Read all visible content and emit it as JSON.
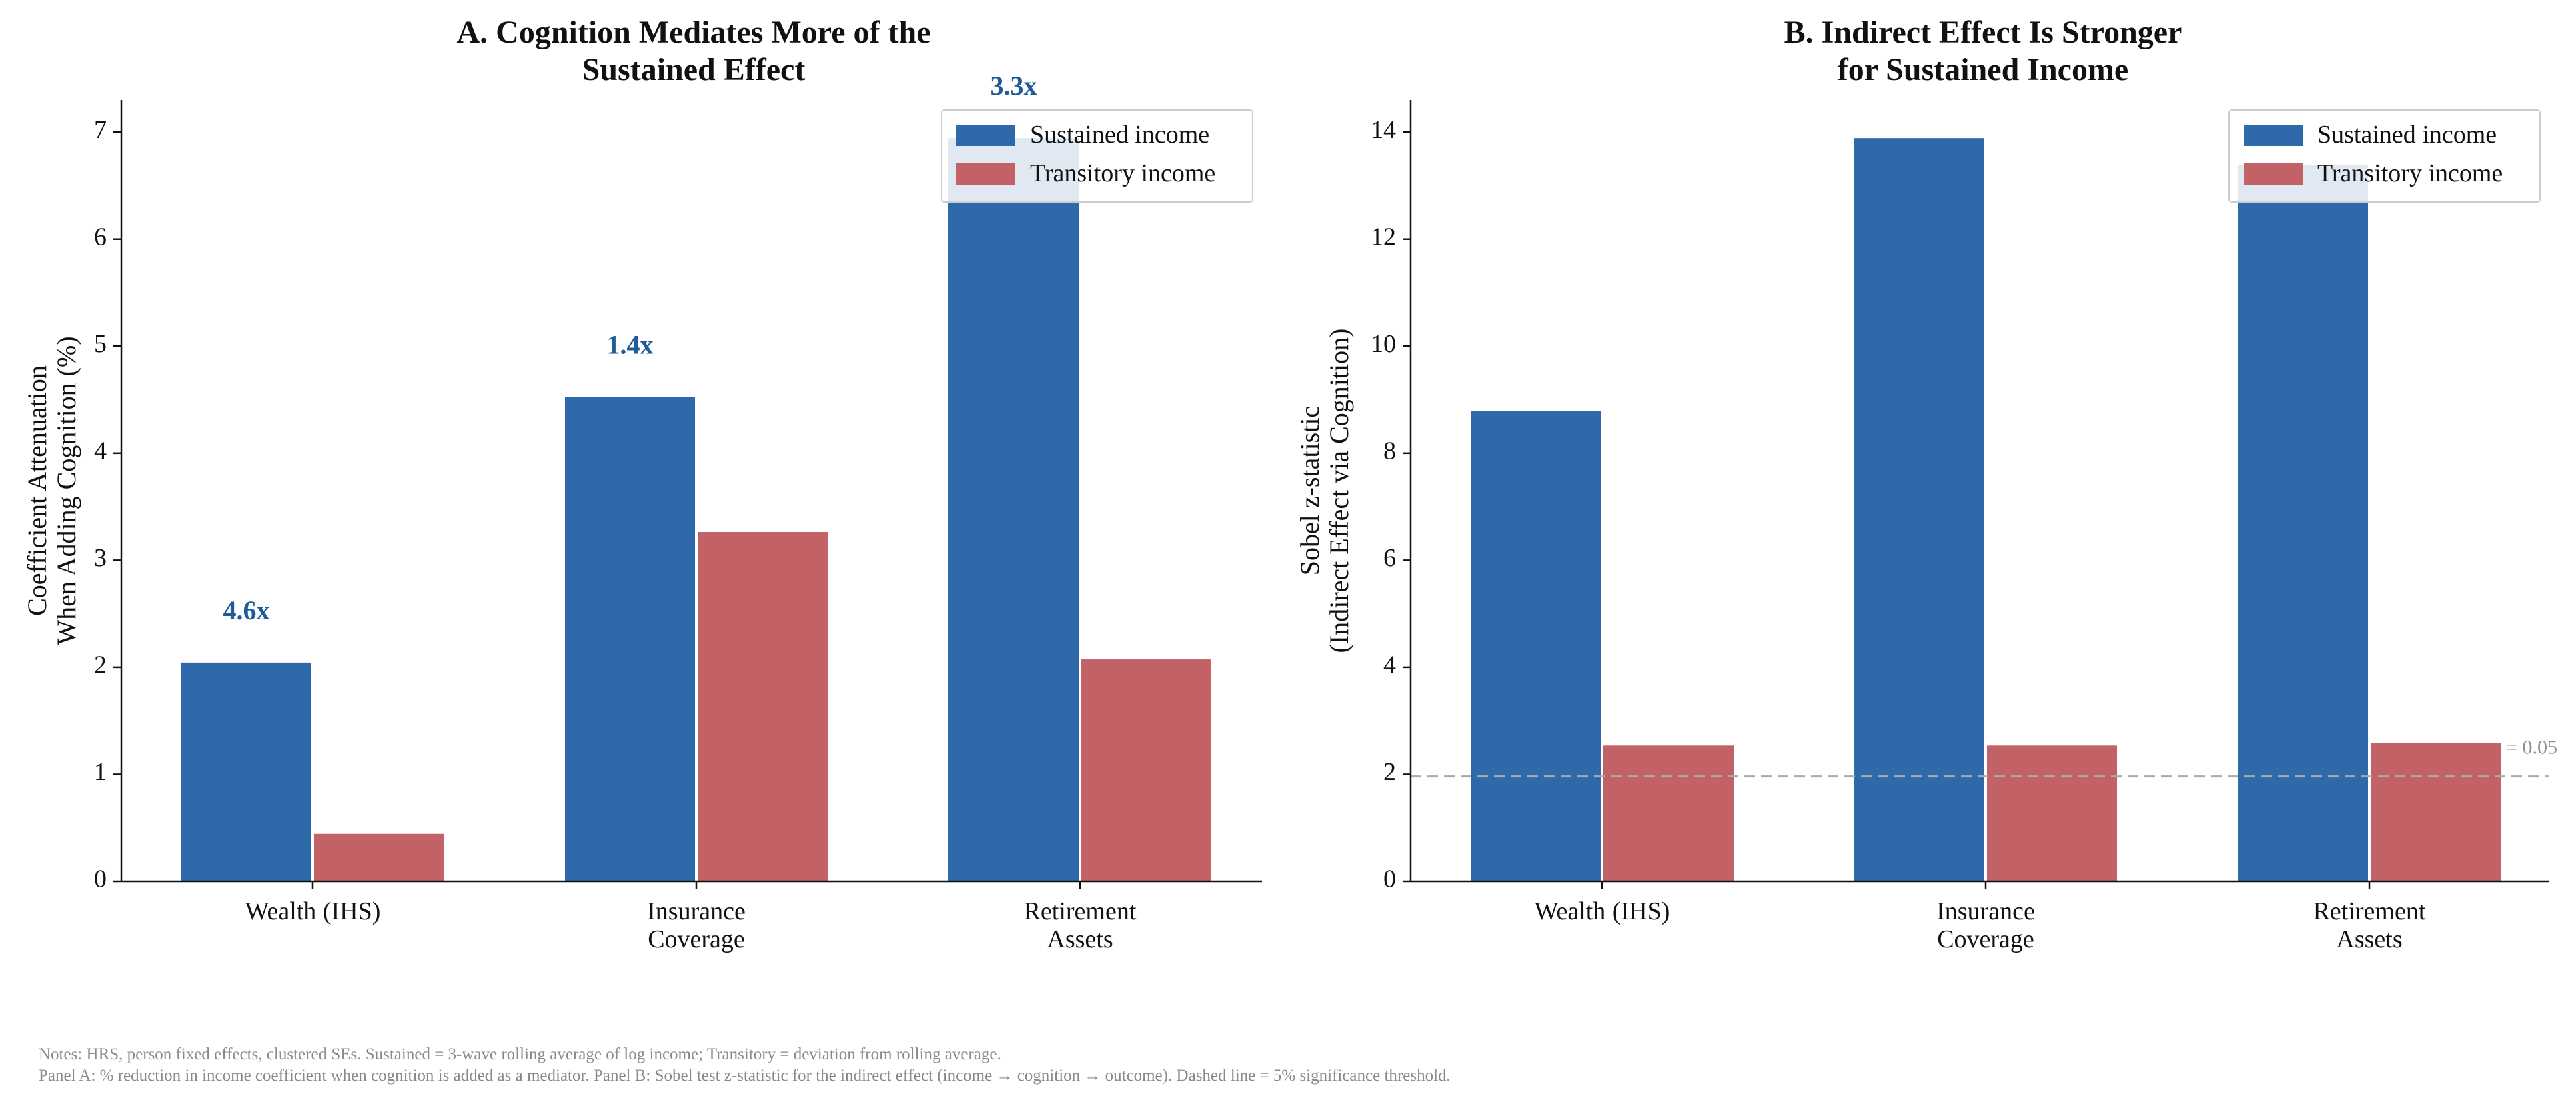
{
  "colors": {
    "sustained": "#2e6aaa",
    "transitory": "#c26266",
    "ratio_label": "#1f5a99",
    "threshold": "#aaaaaa",
    "notes": "#8a8a8a"
  },
  "chart_data": [
    {
      "type": "bar",
      "title_lines": [
        "A. Cognition Mediates More of the",
        "Sustained Effect"
      ],
      "ylabel_lines": [
        "Coefficient Attenuation",
        "When Adding Cognition (%)"
      ],
      "categories": [
        [
          "Wealth (IHS)"
        ],
        [
          "Insurance",
          "Coverage"
        ],
        [
          "Retirement",
          "Assets"
        ]
      ],
      "series": [
        {
          "name": "Sustained income",
          "values": [
            2.05,
            4.53,
            6.95
          ]
        },
        {
          "name": "Transitory income",
          "values": [
            0.45,
            3.27,
            2.08
          ]
        }
      ],
      "ratio_labels": [
        "4.6x",
        "1.4x",
        "3.3x"
      ],
      "ylim": [
        0,
        7.3
      ],
      "yticks": [
        0,
        1,
        2,
        3,
        4,
        5,
        6,
        7
      ],
      "legend": "top-right",
      "grid": false
    },
    {
      "type": "bar",
      "title_lines": [
        "B. Indirect Effect Is Stronger",
        "for Sustained Income"
      ],
      "ylabel_lines": [
        "Sobel z-statistic",
        "(Indirect Effect via Cognition)"
      ],
      "categories": [
        [
          "Wealth (IHS)"
        ],
        [
          "Insurance",
          "Coverage"
        ],
        [
          "Retirement",
          "Assets"
        ]
      ],
      "series": [
        {
          "name": "Sustained income",
          "values": [
            8.8,
            13.9,
            13.4
          ]
        },
        {
          "name": "Transitory income",
          "values": [
            2.55,
            2.55,
            2.6
          ]
        }
      ],
      "threshold": {
        "value": 1.96,
        "label": "= 0.05"
      },
      "ylim": [
        0,
        14.6
      ],
      "yticks": [
        0,
        2,
        4,
        6,
        8,
        10,
        12,
        14
      ],
      "legend": "top-right",
      "grid": false
    }
  ],
  "notes": {
    "line1": "Notes: HRS, person fixed effects, clustered SEs. Sustained = 3-wave rolling average of log income; Transitory = deviation from rolling average.",
    "line2": "Panel A: % reduction in income coefficient when cognition is added as a mediator. Panel B: Sobel test z-statistic for the indirect effect (income → cognition → outcome). Dashed line = 5% significance threshold."
  }
}
